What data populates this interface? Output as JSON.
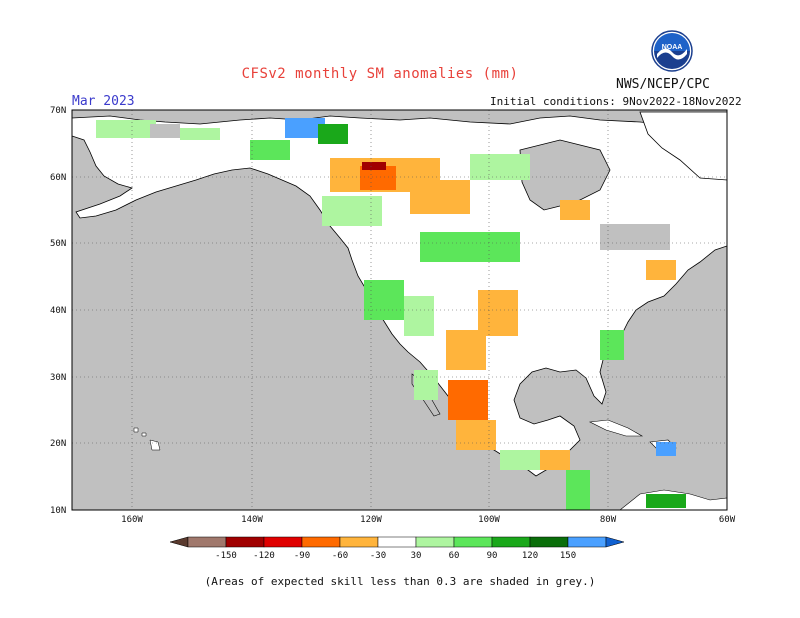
{
  "title": "CFSv2 monthly SM anomalies (mm)",
  "month": "Mar 2023",
  "agency": "NWS/NCEP/CPC",
  "initial_conditions": "Initial conditions: 9Nov2022-18Nov2022",
  "logo_text": "NOAA",
  "footnote": "(Areas of expected skill less than 0.3 are shaded in grey.)",
  "map": {
    "lat_labels": [
      "70N",
      "60N",
      "50N",
      "40N",
      "30N",
      "20N",
      "10N"
    ],
    "lon_labels": [
      "160W",
      "140W",
      "120W",
      "100W",
      "80W",
      "60W"
    ],
    "colors": {
      "ocean": "#c0c0c0",
      "land": "#ffffff",
      "low_skill": "#c0c0c0"
    }
  },
  "colorbar": {
    "labels": [
      "-150",
      "-120",
      "-90",
      "-60",
      "-30",
      "30",
      "60",
      "90",
      "120",
      "150"
    ],
    "colors": [
      "#5a3a2e",
      "#a0786c",
      "#a00000",
      "#e00000",
      "#ff6a00",
      "#ffb43c",
      "#ffffff",
      "#aef5a0",
      "#5ce65a",
      "#1aa81a",
      "#0a6e0a",
      "#4aa0ff",
      "#1060d0"
    ]
  }
}
